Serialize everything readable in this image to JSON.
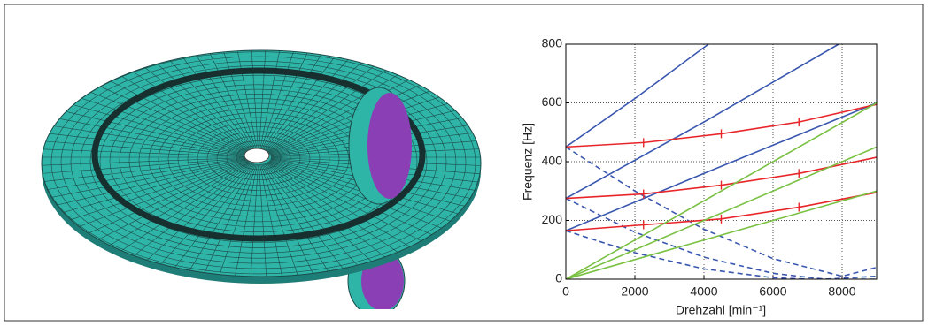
{
  "chart_data": {
    "type": "line",
    "x_label": "Drehzahl [min⁻¹]",
    "y_label": "Frequenz [Hz]",
    "xlim": [
      0,
      9000
    ],
    "xticks": [
      0,
      2000,
      4000,
      6000,
      8000
    ],
    "ylim": [
      0,
      800
    ],
    "yticks": [
      0,
      200,
      400,
      600,
      800
    ],
    "grid": true,
    "series": [
      {
        "color": "#3a57b0",
        "style": "solid",
        "x": [
          0,
          2000,
          4130
        ],
        "values": [
          450,
          615,
          800
        ]
      },
      {
        "color": "#3a57b0",
        "style": "solid",
        "x": [
          0,
          4000,
          7900
        ],
        "values": [
          275,
          535,
          800
        ]
      },
      {
        "color": "#3a57b0",
        "style": "solid",
        "x": [
          0,
          4000,
          9000
        ],
        "values": [
          165,
          360,
          600
        ]
      },
      {
        "color": "#3a57b0",
        "style": "dashed",
        "x": [
          0,
          2000,
          4000,
          6000,
          8000,
          9000
        ],
        "values": [
          450,
          300,
          170,
          70,
          10,
          40
        ]
      },
      {
        "color": "#3a57b0",
        "style": "dashed",
        "x": [
          0,
          2000,
          4000,
          6000,
          7500,
          9000
        ],
        "values": [
          275,
          160,
          75,
          20,
          0,
          10
        ]
      },
      {
        "color": "#3a57b0",
        "style": "dashed",
        "x": [
          0,
          2000,
          4000,
          6000,
          7000,
          9000
        ],
        "values": [
          165,
          90,
          35,
          5,
          0,
          0
        ]
      },
      {
        "color": "#e8262a",
        "style": "ticked",
        "x": [
          0,
          2250,
          4500,
          6750,
          9000
        ],
        "values": [
          165,
          185,
          205,
          245,
          295
        ]
      },
      {
        "color": "#e8262a",
        "style": "ticked",
        "x": [
          0,
          2250,
          4500,
          6750,
          9000
        ],
        "values": [
          275,
          290,
          320,
          360,
          415
        ]
      },
      {
        "color": "#e8262a",
        "style": "ticked",
        "x": [
          0,
          2250,
          4500,
          6750,
          9000
        ],
        "values": [
          450,
          465,
          495,
          535,
          595
        ]
      },
      {
        "color": "#7ac143",
        "style": "solid",
        "x": [
          0,
          9000
        ],
        "values": [
          0,
          300
        ]
      },
      {
        "color": "#7ac143",
        "style": "solid",
        "x": [
          0,
          9000
        ],
        "values": [
          0,
          450
        ]
      },
      {
        "color": "#7ac143",
        "style": "solid",
        "x": [
          0,
          9000
        ],
        "values": [
          0,
          600
        ]
      }
    ]
  }
}
